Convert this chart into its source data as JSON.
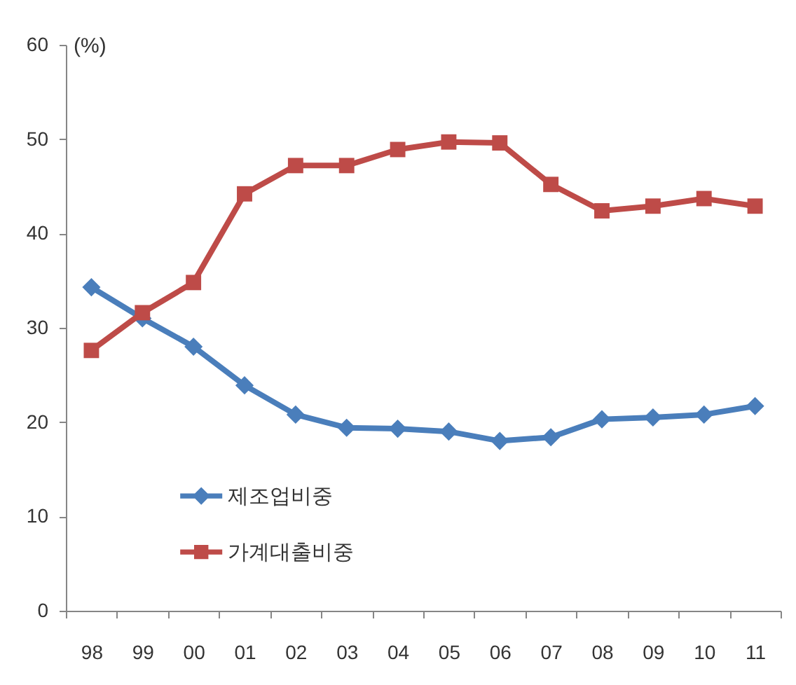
{
  "chart_data": {
    "type": "line",
    "ylabel": "(%)",
    "categories": [
      "98",
      "99",
      "00",
      "01",
      "02",
      "03",
      "04",
      "05",
      "06",
      "07",
      "08",
      "09",
      "10",
      "11"
    ],
    "series": [
      {
        "name": "제조업비중",
        "color": "#4a7ebb",
        "marker": "diamond",
        "values": [
          34.3,
          31.0,
          28.0,
          23.9,
          20.8,
          19.4,
          19.3,
          19.0,
          18.0,
          18.4,
          20.3,
          20.5,
          20.8,
          21.7
        ]
      },
      {
        "name": "가계대출비중",
        "color": "#be4b48",
        "marker": "square",
        "values": [
          27.6,
          31.6,
          34.8,
          44.2,
          47.2,
          47.2,
          48.9,
          49.7,
          49.6,
          45.2,
          42.4,
          42.9,
          43.7,
          42.9
        ]
      }
    ],
    "ylim": [
      0,
      60
    ],
    "yticks": [
      0,
      10,
      20,
      30,
      40,
      50,
      60
    ],
    "legend": "bottom left"
  }
}
